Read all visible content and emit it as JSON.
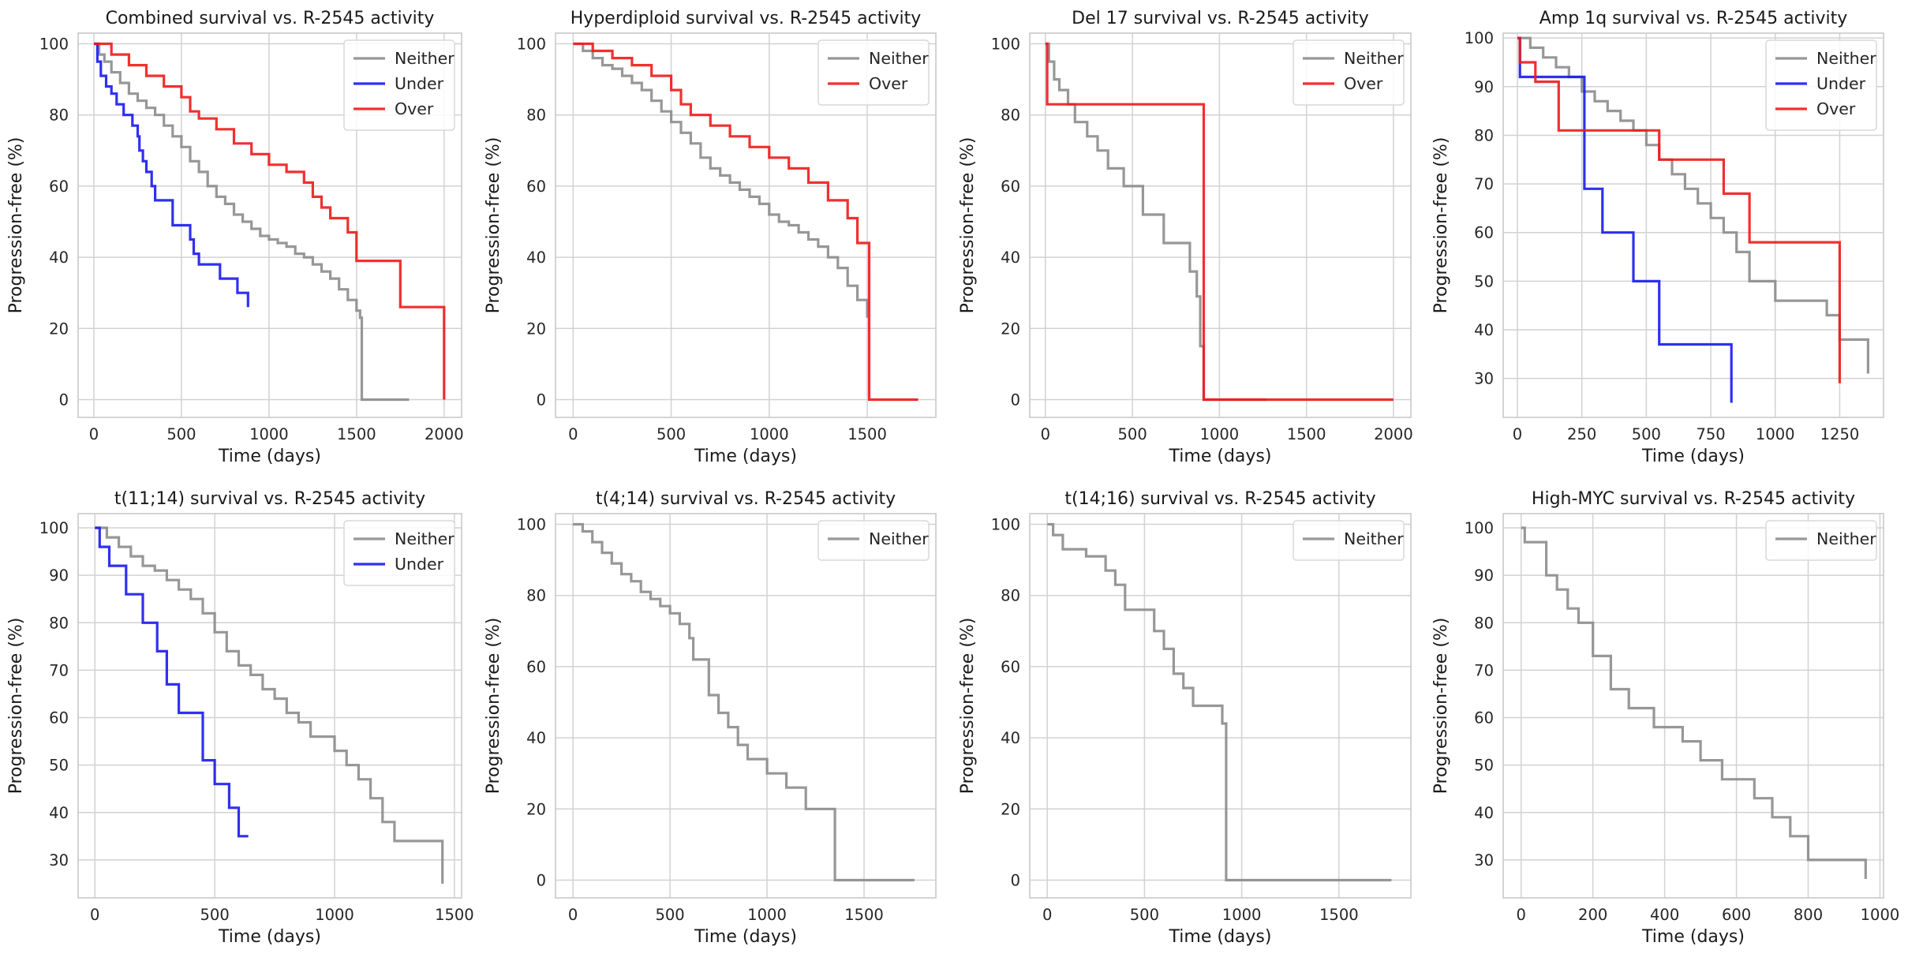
{
  "figure": {
    "colors": {
      "Neither": "#8c8c8c",
      "Under": "#1a1aee",
      "Over": "#ee1a1a"
    }
  },
  "chart_data": [
    {
      "type": "line",
      "title": "Combined survival vs. R-2545 activity",
      "xlabel": "Time (days)",
      "ylabel": "Progression-free (%)",
      "xlim": [
        -90,
        2100
      ],
      "ylim": [
        -5,
        103
      ],
      "xticks": [
        0,
        500,
        1000,
        1500,
        2000
      ],
      "yticks": [
        0,
        20,
        40,
        60,
        80,
        100
      ],
      "legend": "top-right",
      "grid": true,
      "series": [
        {
          "name": "Neither",
          "x": [
            0,
            30,
            60,
            100,
            150,
            200,
            250,
            300,
            350,
            400,
            450,
            500,
            550,
            600,
            650,
            700,
            750,
            800,
            850,
            900,
            950,
            1000,
            1050,
            1100,
            1150,
            1200,
            1250,
            1300,
            1350,
            1400,
            1450,
            1500,
            1520,
            1530,
            1800
          ],
          "y": [
            100,
            97,
            95,
            92,
            89,
            86,
            84,
            82,
            80,
            77,
            74,
            71,
            67,
            64,
            60,
            57,
            55,
            52,
            50,
            48,
            46,
            45,
            44,
            43,
            41,
            40,
            38,
            36,
            34,
            31,
            28,
            25,
            23,
            0,
            0
          ]
        },
        {
          "name": "Under",
          "x": [
            0,
            20,
            40,
            70,
            100,
            130,
            170,
            220,
            250,
            260,
            280,
            300,
            330,
            350,
            450,
            550,
            570,
            600,
            720,
            820,
            880
          ],
          "y": [
            100,
            95,
            91,
            88,
            86,
            83,
            80,
            77,
            74,
            70,
            67,
            64,
            60,
            56,
            49,
            45,
            41,
            38,
            34,
            30,
            26
          ]
        },
        {
          "name": "Over",
          "x": [
            0,
            100,
            200,
            300,
            400,
            500,
            550,
            600,
            700,
            800,
            900,
            1000,
            1100,
            1200,
            1250,
            1300,
            1350,
            1450,
            1500,
            1750,
            2000
          ],
          "y": [
            100,
            97,
            94,
            91,
            88,
            85,
            81,
            79,
            76,
            72,
            69,
            66,
            64,
            61,
            57,
            54,
            51,
            47,
            39,
            26,
            0
          ]
        }
      ]
    },
    {
      "type": "line",
      "title": "Hyperdiploid survival vs. R-2545 activity",
      "xlabel": "Time (days)",
      "ylabel": "Progression-free (%)",
      "xlim": [
        -90,
        1850
      ],
      "ylim": [
        -5,
        103
      ],
      "xticks": [
        0,
        500,
        1000,
        1500
      ],
      "yticks": [
        0,
        20,
        40,
        60,
        80,
        100
      ],
      "legend": "top-right",
      "grid": true,
      "series": [
        {
          "name": "Neither",
          "x": [
            0,
            50,
            100,
            150,
            200,
            250,
            300,
            350,
            400,
            450,
            500,
            550,
            600,
            650,
            700,
            750,
            800,
            850,
            900,
            950,
            1000,
            1050,
            1100,
            1150,
            1200,
            1250,
            1300,
            1350,
            1400,
            1450,
            1500
          ],
          "y": [
            100,
            98,
            96,
            94,
            93,
            91,
            89,
            87,
            84,
            81,
            78,
            75,
            72,
            68,
            65,
            63,
            61,
            59,
            57,
            55,
            52,
            50,
            49,
            47,
            45,
            43,
            40,
            37,
            32,
            28,
            23
          ]
        },
        {
          "name": "Over",
          "x": [
            0,
            100,
            200,
            300,
            400,
            500,
            550,
            600,
            700,
            800,
            900,
            1000,
            1100,
            1200,
            1300,
            1400,
            1450,
            1510,
            1760
          ],
          "y": [
            100,
            98,
            96,
            94,
            91,
            87,
            83,
            80,
            77,
            74,
            71,
            68,
            65,
            61,
            56,
            51,
            44,
            0,
            0
          ]
        }
      ]
    },
    {
      "type": "line",
      "title": "Del 17 survival vs. R-2545 activity",
      "xlabel": "Time (days)",
      "ylabel": "Progression-free (%)",
      "xlim": [
        -90,
        2100
      ],
      "ylim": [
        -5,
        103
      ],
      "xticks": [
        0,
        500,
        1000,
        1500,
        2000
      ],
      "yticks": [
        0,
        20,
        40,
        60,
        80,
        100
      ],
      "legend": "top-right",
      "grid": true,
      "series": [
        {
          "name": "Neither",
          "x": [
            0,
            20,
            50,
            80,
            130,
            170,
            240,
            300,
            360,
            450,
            560,
            680,
            830,
            870,
            890,
            910,
            1270
          ],
          "y": [
            100,
            95,
            90,
            87,
            83,
            78,
            74,
            70,
            65,
            60,
            52,
            44,
            36,
            29,
            15,
            0,
            0
          ]
        },
        {
          "name": "Over",
          "x": [
            0,
            10,
            900,
            910,
            2000
          ],
          "y": [
            100,
            83,
            83,
            0,
            0
          ]
        }
      ]
    },
    {
      "type": "line",
      "title": "Amp 1q survival vs. R-2545 activity",
      "xlabel": "Time (days)",
      "ylabel": "Progression-free (%)",
      "xlim": [
        -55,
        1420
      ],
      "ylim": [
        22,
        101
      ],
      "xticks": [
        0,
        250,
        500,
        750,
        1000,
        1250
      ],
      "yticks": [
        30,
        40,
        50,
        60,
        70,
        80,
        90,
        100
      ],
      "legend": "top-right",
      "grid": true,
      "series": [
        {
          "name": "Neither",
          "x": [
            0,
            50,
            100,
            150,
            200,
            250,
            300,
            350,
            400,
            450,
            500,
            550,
            600,
            650,
            700,
            750,
            800,
            850,
            900,
            1000,
            1200,
            1250,
            1360
          ],
          "y": [
            100,
            98,
            96,
            94,
            92,
            89,
            87,
            85,
            83,
            81,
            78,
            75,
            72,
            69,
            66,
            63,
            60,
            56,
            50,
            46,
            43,
            38,
            31
          ]
        },
        {
          "name": "Under",
          "x": [
            0,
            10,
            200,
            260,
            330,
            450,
            550,
            830
          ],
          "y": [
            100,
            92,
            92,
            69,
            60,
            50,
            37,
            25
          ]
        },
        {
          "name": "Over",
          "x": [
            0,
            10,
            70,
            160,
            520,
            550,
            800,
            900,
            1250
          ],
          "y": [
            100,
            95,
            91,
            81,
            81,
            75,
            68,
            58,
            29
          ]
        }
      ]
    },
    {
      "type": "line",
      "title": "t(11;14) survival vs. R-2545 activity",
      "xlabel": "Time (days)",
      "ylabel": "Progression-free (%)",
      "xlim": [
        -70,
        1530
      ],
      "ylim": [
        22,
        103
      ],
      "xticks": [
        0,
        500,
        1000,
        1500
      ],
      "yticks": [
        30,
        40,
        50,
        60,
        70,
        80,
        90,
        100
      ],
      "legend": "top-right",
      "grid": true,
      "series": [
        {
          "name": "Neither",
          "x": [
            0,
            50,
            100,
            150,
            200,
            250,
            300,
            350,
            400,
            450,
            500,
            550,
            600,
            650,
            700,
            750,
            800,
            850,
            900,
            1000,
            1050,
            1100,
            1150,
            1200,
            1250,
            1450
          ],
          "y": [
            100,
            98,
            96,
            94,
            92,
            91,
            89,
            87,
            85,
            82,
            78,
            74,
            71,
            69,
            66,
            64,
            61,
            59,
            56,
            53,
            50,
            47,
            43,
            38,
            34,
            25
          ]
        },
        {
          "name": "Under",
          "x": [
            0,
            20,
            60,
            130,
            200,
            260,
            300,
            350,
            450,
            500,
            560,
            600,
            640
          ],
          "y": [
            100,
            96,
            92,
            86,
            80,
            74,
            67,
            61,
            51,
            46,
            41,
            35,
            35
          ]
        }
      ]
    },
    {
      "type": "line",
      "title": "t(4;14) survival vs. R-2545 activity",
      "xlabel": "Time (days)",
      "ylabel": "Progression-free (%)",
      "xlim": [
        -90,
        1870
      ],
      "ylim": [
        -5,
        103
      ],
      "xticks": [
        0,
        500,
        1000,
        1500
      ],
      "yticks": [
        0,
        20,
        40,
        60,
        80,
        100
      ],
      "legend": "top-right",
      "grid": true,
      "series": [
        {
          "name": "Neither",
          "x": [
            0,
            50,
            100,
            150,
            200,
            250,
            300,
            350,
            400,
            450,
            500,
            550,
            600,
            620,
            700,
            750,
            800,
            850,
            900,
            1000,
            1100,
            1200,
            1350,
            1760
          ],
          "y": [
            100,
            98,
            95,
            92,
            89,
            86,
            84,
            81,
            79,
            77,
            75,
            72,
            68,
            62,
            52,
            47,
            43,
            38,
            34,
            30,
            26,
            20,
            0,
            0
          ]
        }
      ]
    },
    {
      "type": "line",
      "title": "t(14;16) survival vs. R-2545 activity",
      "xlabel": "Time (days)",
      "ylabel": "Progression-free (%)",
      "xlim": [
        -90,
        1870
      ],
      "ylim": [
        -5,
        103
      ],
      "xticks": [
        0,
        500,
        1000,
        1500
      ],
      "yticks": [
        0,
        20,
        40,
        60,
        80,
        100
      ],
      "legend": "top-right",
      "grid": true,
      "series": [
        {
          "name": "Neither",
          "x": [
            0,
            30,
            80,
            200,
            300,
            350,
            400,
            550,
            600,
            650,
            700,
            750,
            900,
            920,
            1770
          ],
          "y": [
            100,
            97,
            93,
            91,
            87,
            83,
            76,
            70,
            65,
            58,
            54,
            49,
            44,
            0,
            0
          ]
        }
      ]
    },
    {
      "type": "line",
      "title": "High-MYC survival vs. R-2545 activity",
      "xlabel": "Time (days)",
      "ylabel": "Progression-free (%)",
      "xlim": [
        -50,
        1010
      ],
      "ylim": [
        22,
        103
      ],
      "xticks": [
        0,
        200,
        400,
        600,
        800,
        1000
      ],
      "yticks": [
        30,
        40,
        50,
        60,
        70,
        80,
        90,
        100
      ],
      "legend": "top-right",
      "grid": true,
      "series": [
        {
          "name": "Neither",
          "x": [
            0,
            10,
            70,
            100,
            130,
            160,
            200,
            250,
            300,
            370,
            450,
            500,
            560,
            650,
            700,
            750,
            800,
            960
          ],
          "y": [
            100,
            97,
            90,
            87,
            83,
            80,
            73,
            66,
            62,
            58,
            55,
            51,
            47,
            43,
            39,
            35,
            30,
            26
          ]
        }
      ]
    }
  ]
}
